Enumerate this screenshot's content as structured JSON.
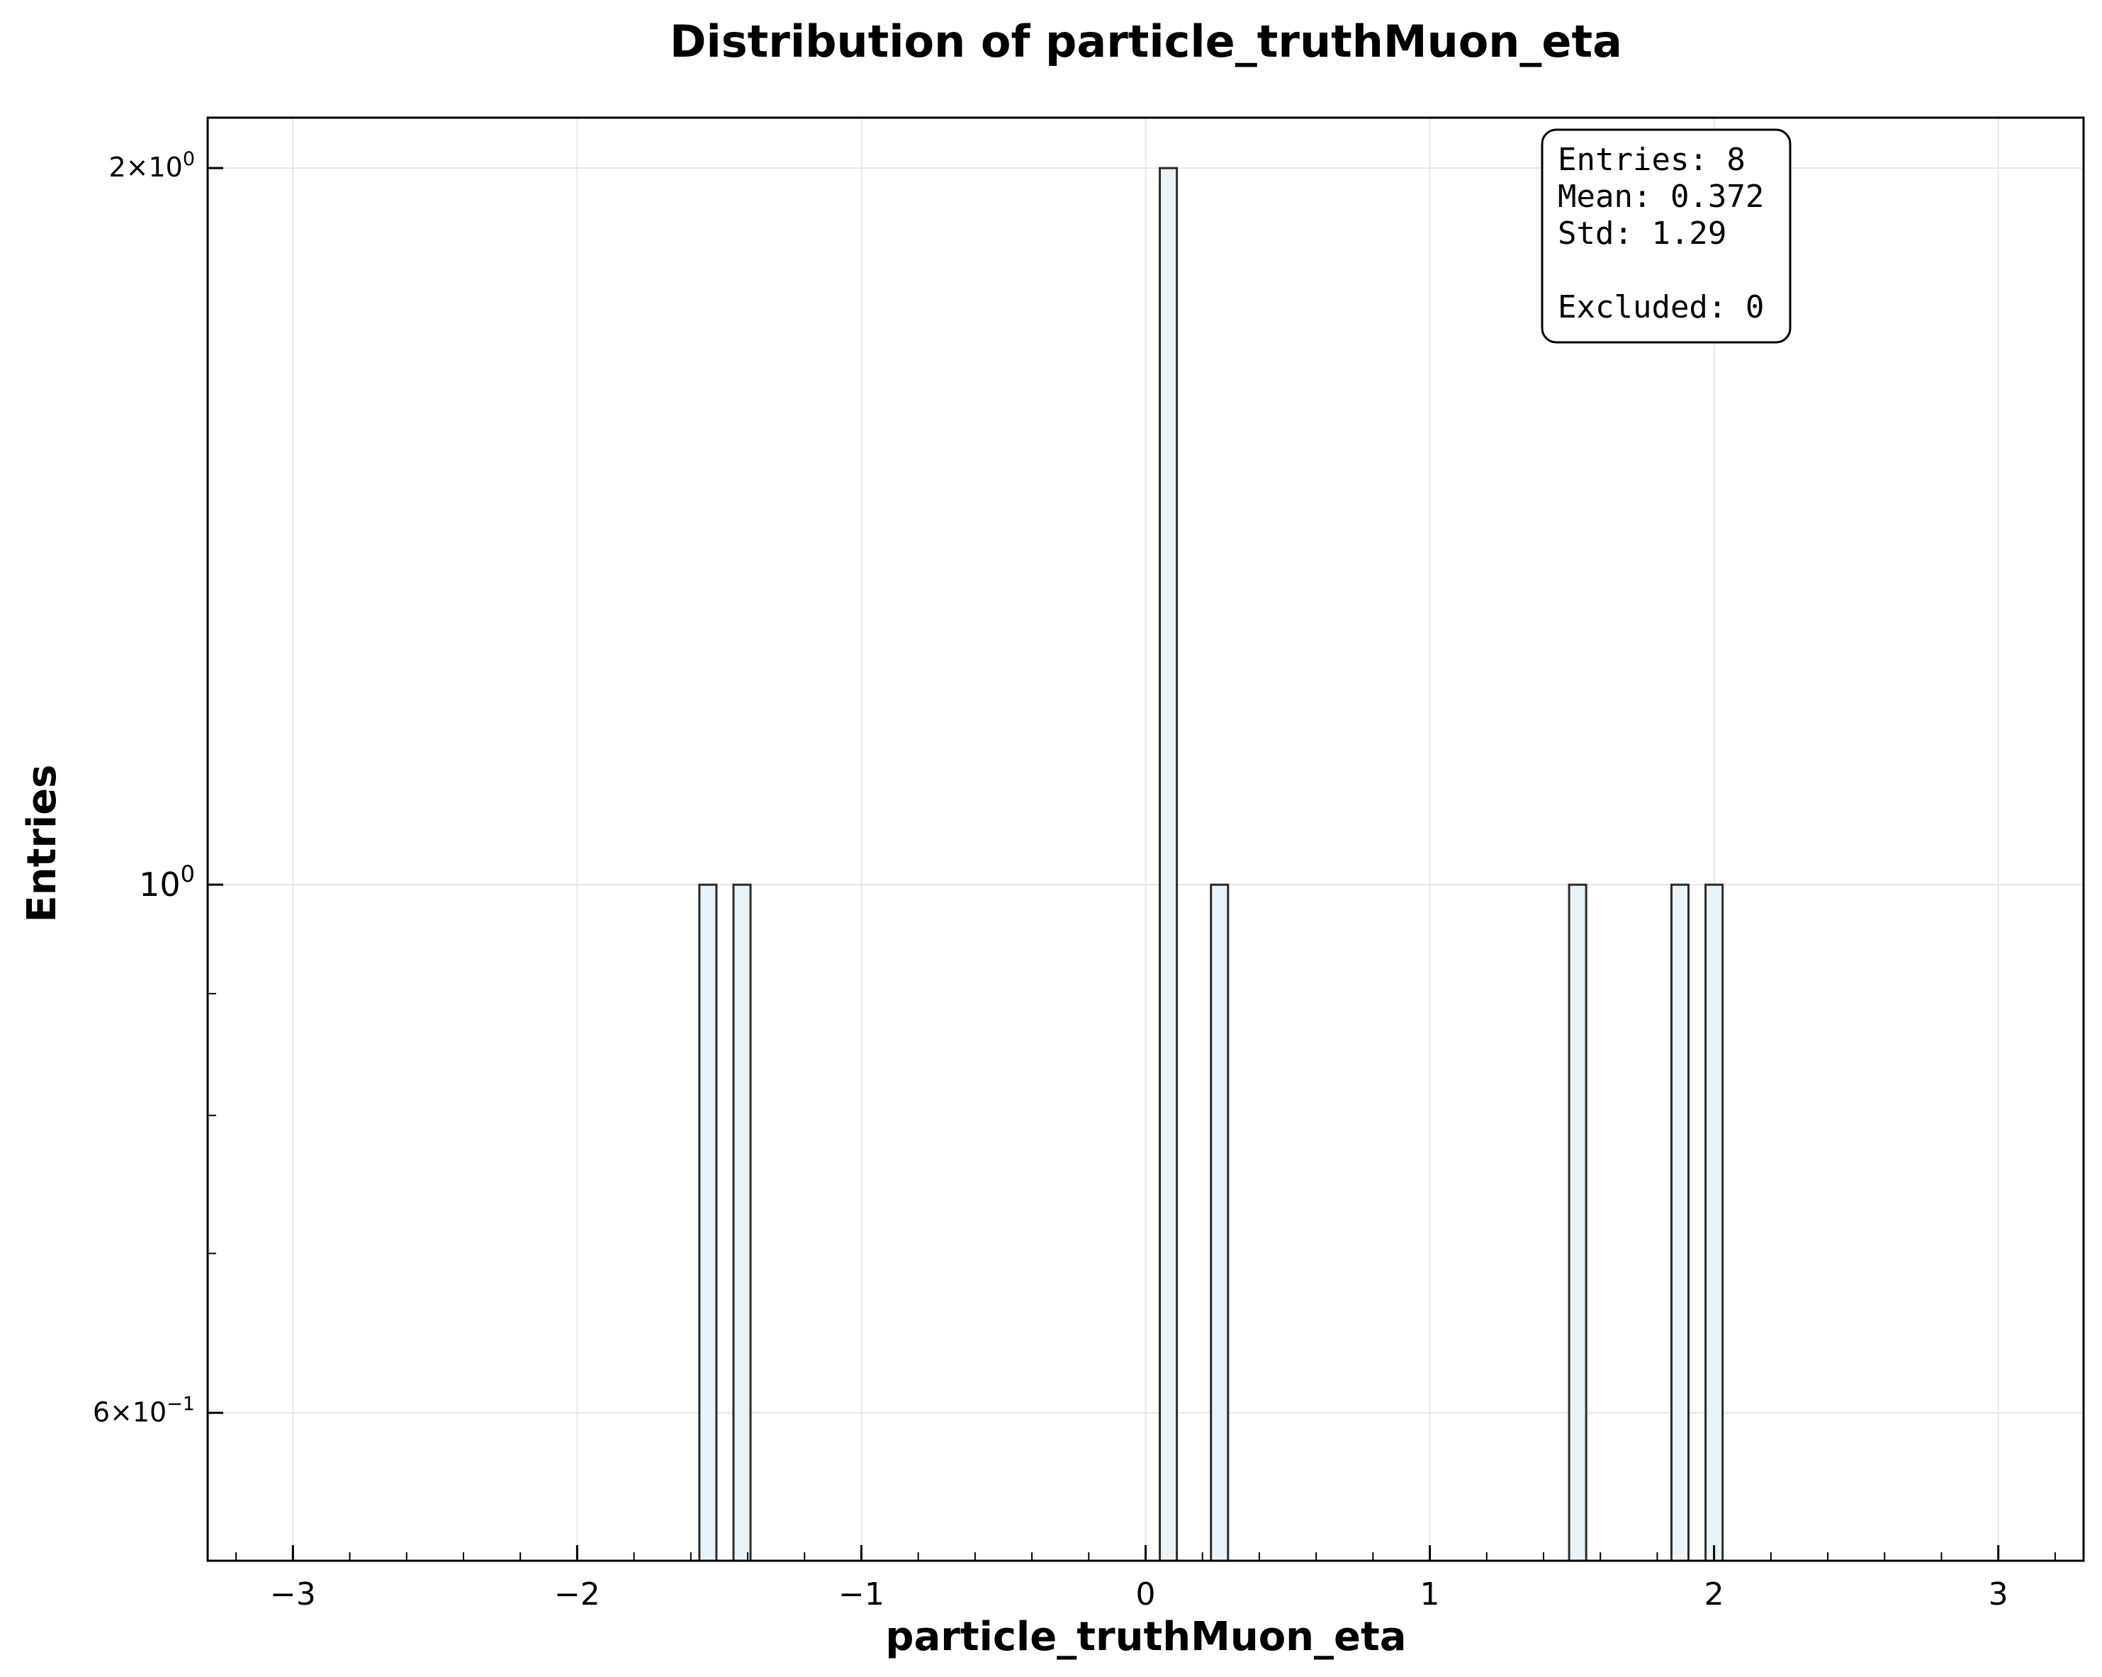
{
  "chart_data": {
    "type": "bar",
    "title": "Distribution of particle_truthMuon_eta",
    "xlabel": "particle_truthMuon_eta",
    "ylabel": "Entries",
    "xlim": [
      -3.3,
      3.3
    ],
    "ylim": [
      0.52,
      2.1
    ],
    "yscale": "log",
    "grid": true,
    "x_ticks": [
      {
        "value": -3,
        "label": "−3"
      },
      {
        "value": -2,
        "label": "−2"
      },
      {
        "value": -1,
        "label": "−1"
      },
      {
        "value": 0,
        "label": "0"
      },
      {
        "value": 1,
        "label": "1"
      },
      {
        "value": 2,
        "label": "2"
      },
      {
        "value": 3,
        "label": "3"
      }
    ],
    "y_ticks": [
      {
        "value": 2,
        "mant": "2",
        "base": "10",
        "exp": "0"
      },
      {
        "value": 1,
        "mant": "",
        "base": "10",
        "exp": "0"
      },
      {
        "value": 0.6,
        "mant": "6",
        "base": "10",
        "exp": "−1"
      }
    ],
    "bin_width": 0.06,
    "bins": [
      {
        "x": -1.54,
        "count": 1
      },
      {
        "x": -1.42,
        "count": 1
      },
      {
        "x": 0.08,
        "count": 2
      },
      {
        "x": 0.26,
        "count": 1
      },
      {
        "x": 1.52,
        "count": 1
      },
      {
        "x": 1.88,
        "count": 1
      },
      {
        "x": 2.0,
        "count": 1
      }
    ],
    "bar_fill": "#e8f4f8",
    "bar_edge": "#2b2b2b",
    "stats_box": {
      "lines": [
        "Entries: 8",
        "Mean: 0.372",
        "Std: 1.29",
        "",
        "Excluded: 0"
      ]
    }
  }
}
